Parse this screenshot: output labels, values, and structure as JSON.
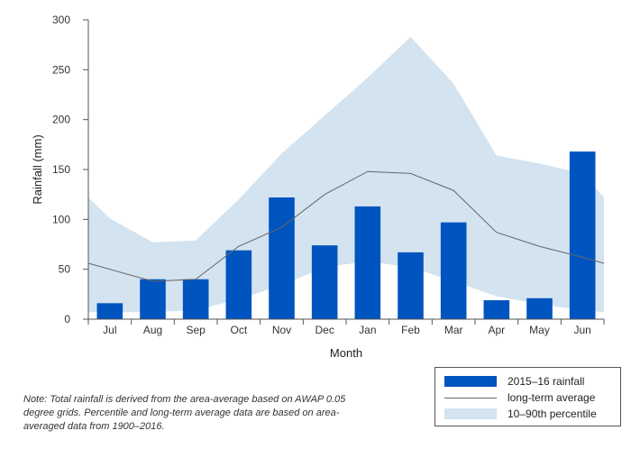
{
  "chart_data": {
    "type": "bar",
    "categories": [
      "Jul",
      "Aug",
      "Sep",
      "Oct",
      "Nov",
      "Dec",
      "Jan",
      "Feb",
      "Mar",
      "Apr",
      "May",
      "Jun"
    ],
    "series": [
      {
        "name": "2015–16 rainfall",
        "kind": "bar",
        "values": [
          16,
          40,
          40,
          69,
          122,
          74,
          113,
          67,
          97,
          19,
          21,
          168
        ]
      },
      {
        "name": "long-term average",
        "kind": "line",
        "values": [
          50,
          38,
          40,
          73,
          92,
          125,
          148,
          146,
          129,
          87,
          73,
          62
        ]
      },
      {
        "name": "10–90th percentile",
        "kind": "band",
        "lower": [
          7,
          7,
          9,
          20,
          34,
          52,
          58,
          52,
          38,
          23,
          15,
          9
        ],
        "upper": [
          101,
          77,
          79,
          120,
          166,
          204,
          242,
          283,
          236,
          164,
          156,
          146
        ]
      }
    ],
    "edge_values": {
      "band_upper_start": 122,
      "band_upper_end": 122,
      "band_lower_start": 7,
      "band_lower_end": 7,
      "avg_start": 56,
      "avg_end": 56
    },
    "title": "",
    "xlabel": "Month",
    "ylabel": "Rainfall (mm)",
    "ylim": [
      0,
      300
    ],
    "yticks": [
      0,
      50,
      100,
      150,
      200,
      250,
      300
    ],
    "colors": {
      "bar": "#0054c0",
      "line": "#666666",
      "band": "#d3e3ef",
      "axis": "#555555"
    }
  },
  "legend": {
    "items": [
      {
        "label": "2015–16 rainfall"
      },
      {
        "label": "long-term average"
      },
      {
        "label": "10–90th percentile"
      }
    ]
  },
  "note": "Note: Total rainfall is derived from the area-average based on AWAP 0.05 degree grids. Percentile and long-term average data are based on area-averaged data from 1900–2016."
}
